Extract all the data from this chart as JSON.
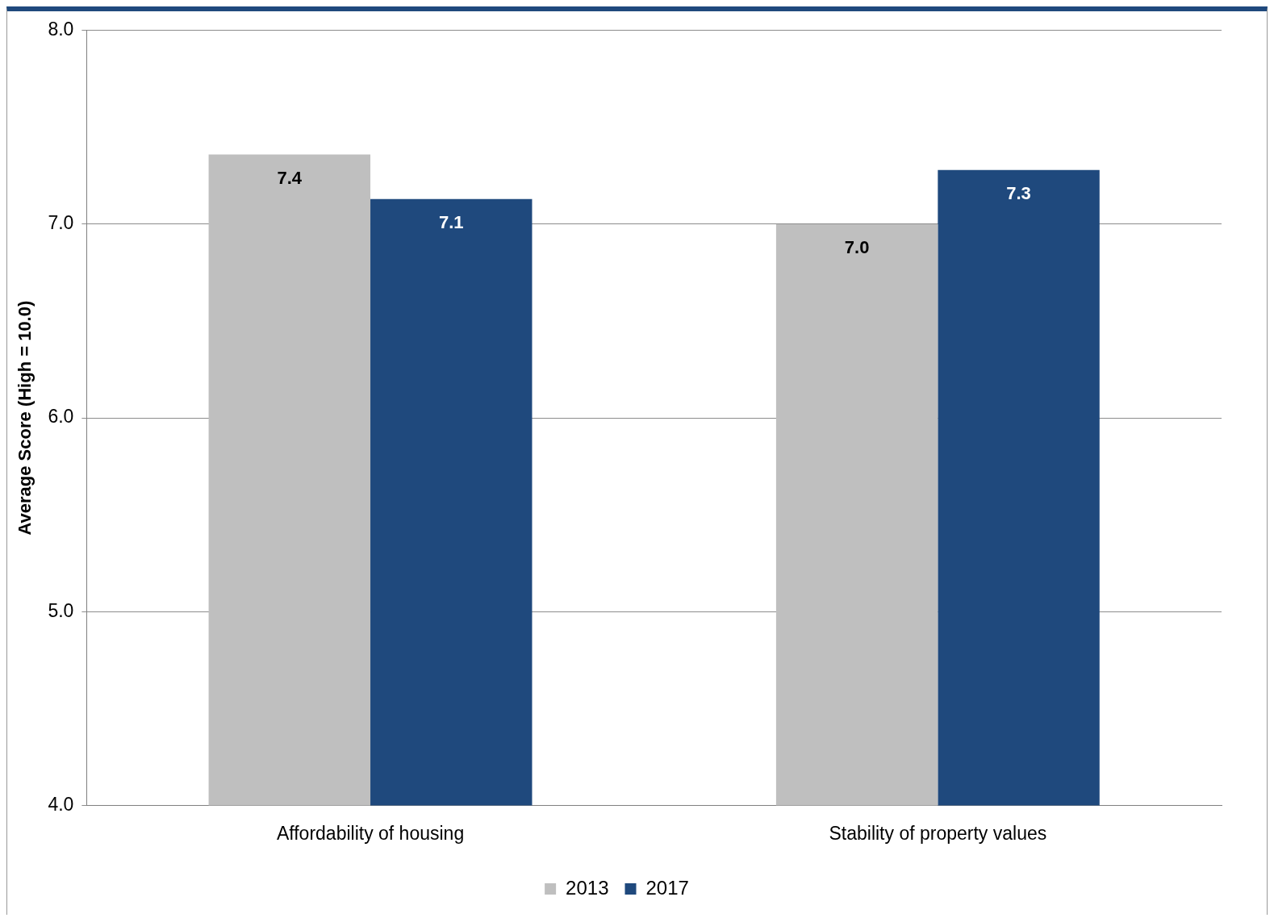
{
  "chart_data": {
    "type": "bar",
    "ylabel": "Average Score (High = 10.0)",
    "categories": [
      "Affordability of housing",
      "Stability of property values"
    ],
    "series": [
      {
        "name": "2013",
        "color": "#bfbfbf",
        "values": [
          7.36,
          7.0
        ],
        "value_labels": [
          "7.4",
          "7.0"
        ]
      },
      {
        "name": "2017",
        "color": "#1f497d",
        "values": [
          7.13,
          7.28
        ],
        "value_labels": [
          "7.1",
          "7.3"
        ]
      }
    ],
    "ylim": [
      4,
      8
    ],
    "yticks": [
      {
        "value": 4,
        "label": "4.0"
      },
      {
        "value": 5,
        "label": "5.0"
      },
      {
        "value": 6,
        "label": "6.0"
      },
      {
        "value": 7,
        "label": "7.0"
      },
      {
        "value": 8,
        "label": "8.0"
      }
    ],
    "grid": "y",
    "legend": "bottom"
  }
}
